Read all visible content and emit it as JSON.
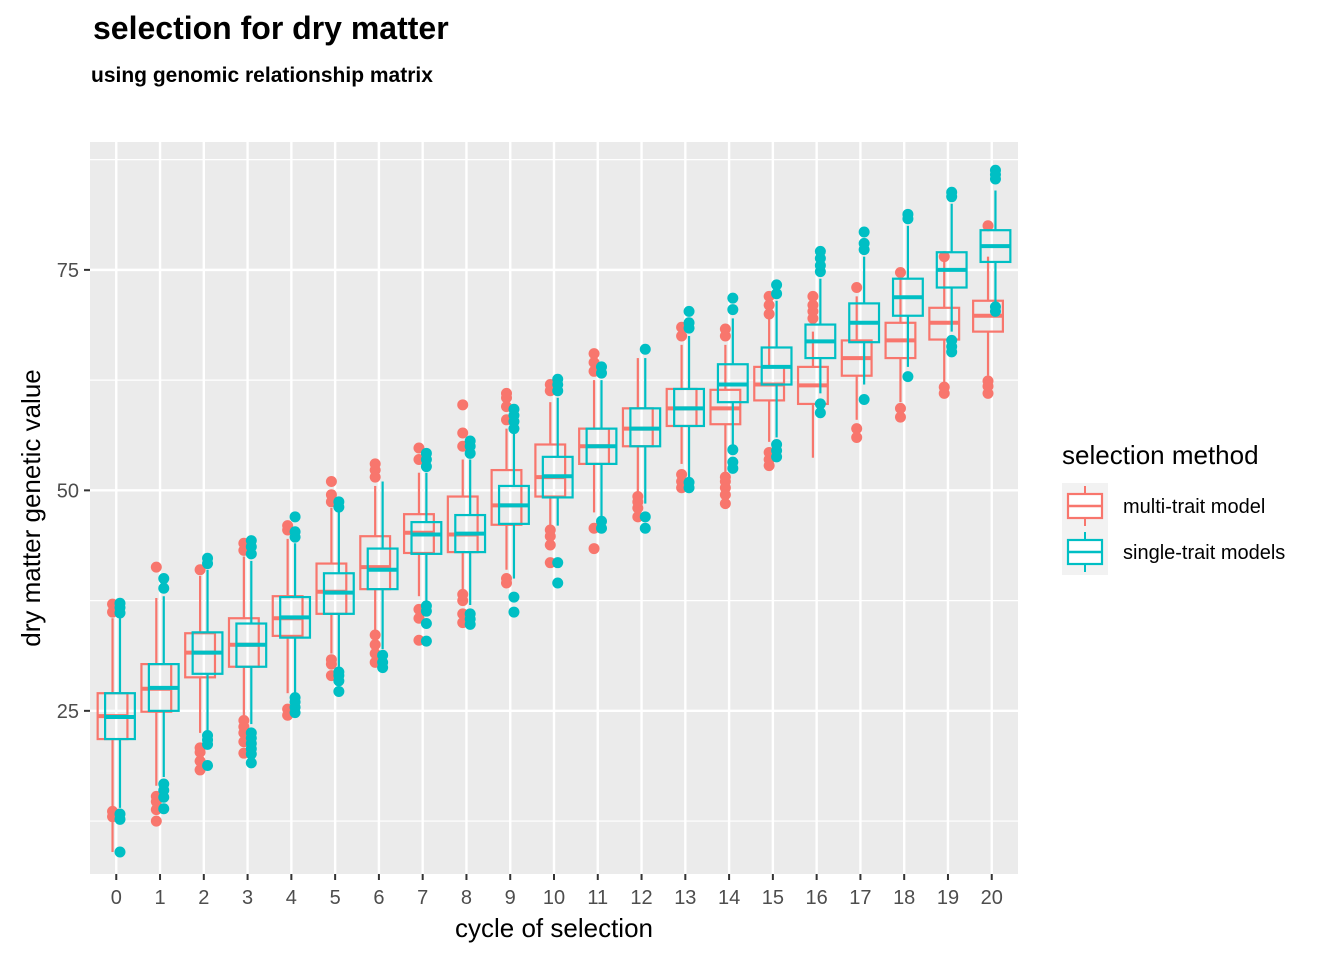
{
  "chart_data": {
    "type": "boxplot",
    "title": "selection for dry matter",
    "subtitle": "using genomic relationship matrix",
    "xlabel": "cycle of selection",
    "ylabel": "dry matter genetic value",
    "categories": [
      "0",
      "1",
      "2",
      "3",
      "4",
      "5",
      "6",
      "7",
      "8",
      "9",
      "10",
      "11",
      "12",
      "13",
      "14",
      "15",
      "16",
      "17",
      "18",
      "19",
      "20"
    ],
    "yticks": [
      25,
      50,
      75
    ],
    "ylim": [
      6.5,
      89.5
    ],
    "grid": true,
    "legend": {
      "title": "selection method",
      "position": "right",
      "items": [
        "multi-trait model",
        "single-trait models"
      ]
    },
    "series": [
      {
        "name": "multi-trait model",
        "color": "#F8766D",
        "boxes": [
          {
            "q1": 21.8,
            "median": 24.4,
            "q3": 27.0,
            "lower": 9.0,
            "upper": 35.5,
            "outliers": [
              13.0,
              13.6,
              36.2,
              37.1
            ]
          },
          {
            "q1": 24.9,
            "median": 27.5,
            "q3": 30.3,
            "lower": 16.5,
            "upper": 37.8,
            "outliers": [
              12.5,
              13.8,
              14.7,
              15.3,
              41.3
            ]
          },
          {
            "q1": 28.8,
            "median": 31.6,
            "q3": 33.8,
            "lower": 22.5,
            "upper": 40.3,
            "outliers": [
              18.3,
              19.3,
              20.3,
              20.8,
              41.0
            ]
          },
          {
            "q1": 30.0,
            "median": 32.5,
            "q3": 35.5,
            "lower": 24.5,
            "upper": 42.5,
            "outliers": [
              20.2,
              21.5,
              22.5,
              23.2,
              23.9,
              43.2,
              44.0
            ]
          },
          {
            "q1": 33.5,
            "median": 35.5,
            "q3": 38.0,
            "lower": 27.0,
            "upper": 44.5,
            "outliers": [
              24.5,
              25.2,
              45.5,
              46.0
            ]
          },
          {
            "q1": 36.0,
            "median": 38.5,
            "q3": 41.7,
            "lower": 31.5,
            "upper": 48.0,
            "outliers": [
              29.0,
              30.3,
              30.8,
              48.7,
              49.5,
              51.0
            ]
          },
          {
            "q1": 38.8,
            "median": 41.3,
            "q3": 44.8,
            "lower": 34.0,
            "upper": 50.5,
            "outliers": [
              30.5,
              31.5,
              32.5,
              33.6,
              51.5,
              52.3,
              53.0
            ]
          },
          {
            "q1": 42.9,
            "median": 45.2,
            "q3": 47.3,
            "lower": 38.0,
            "upper": 52.0,
            "outliers": [
              33.0,
              35.5,
              36.5,
              53.5,
              54.8
            ]
          },
          {
            "q1": 43.0,
            "median": 45.0,
            "q3": 49.3,
            "lower": 38.5,
            "upper": 53.5,
            "outliers": [
              35.0,
              36.0,
              37.5,
              38.2,
              55.0,
              56.5,
              59.7
            ]
          },
          {
            "q1": 46.1,
            "median": 48.3,
            "q3": 52.3,
            "lower": 41.0,
            "upper": 57.0,
            "outliers": [
              39.5,
              40.0,
              58.0,
              59.5,
              60.5,
              61.0
            ]
          },
          {
            "q1": 49.3,
            "median": 51.5,
            "q3": 55.2,
            "lower": 46.0,
            "upper": 60.0,
            "outliers": [
              41.8,
              43.8,
              44.8,
              45.5,
              61.3,
              62.0
            ]
          },
          {
            "q1": 53.0,
            "median": 55.0,
            "q3": 57.0,
            "lower": 47.5,
            "upper": 62.5,
            "outliers": [
              43.4,
              45.7,
              63.5,
              64.5,
              65.5
            ]
          },
          {
            "q1": 55.0,
            "median": 57.0,
            "q3": 59.3,
            "lower": 49.5,
            "upper": 65.0,
            "outliers": [
              47.0,
              48.0,
              48.7,
              49.3
            ]
          },
          {
            "q1": 57.3,
            "median": 59.3,
            "q3": 61.5,
            "lower": 53.0,
            "upper": 66.5,
            "outliers": [
              50.3,
              51.0,
              51.8,
              67.5,
              68.5
            ]
          },
          {
            "q1": 57.5,
            "median": 59.3,
            "q3": 61.4,
            "lower": 52.0,
            "upper": 66.5,
            "outliers": [
              48.5,
              49.5,
              50.3,
              51.0,
              51.5,
              67.5,
              68.3
            ]
          },
          {
            "q1": 60.2,
            "median": 62.0,
            "q3": 64.0,
            "lower": 55.5,
            "upper": 69.5,
            "outliers": [
              52.8,
              53.5,
              54.3,
              70.0,
              71.0,
              72.0
            ]
          },
          {
            "q1": 59.8,
            "median": 61.9,
            "q3": 64.0,
            "lower": 53.7,
            "upper": 68.0,
            "outliers": [
              69.5,
              70.3,
              71.0,
              72.0
            ]
          },
          {
            "q1": 63.0,
            "median": 65.0,
            "q3": 67.0,
            "lower": 58.0,
            "upper": 72.0,
            "outliers": [
              56.0,
              57.0,
              73.0
            ]
          },
          {
            "q1": 65.0,
            "median": 67.0,
            "q3": 69.0,
            "lower": 60.0,
            "upper": 74.0,
            "outliers": [
              58.3,
              59.3,
              74.7
            ]
          },
          {
            "q1": 67.1,
            "median": 69.0,
            "q3": 70.7,
            "lower": 62.0,
            "upper": 76.0,
            "outliers": [
              61.0,
              61.7,
              76.5
            ]
          },
          {
            "q1": 68.0,
            "median": 69.8,
            "q3": 71.5,
            "lower": 63.0,
            "upper": 76.5,
            "outliers": [
              61.0,
              61.8,
              62.4,
              80.0
            ]
          }
        ]
      },
      {
        "name": "single-trait models",
        "color": "#00BFC4",
        "boxes": [
          {
            "q1": 21.8,
            "median": 24.3,
            "q3": 27.0,
            "lower": 14.0,
            "upper": 35.5,
            "outliers": [
              9.0,
              12.7,
              13.3,
              36.1,
              36.7,
              37.2
            ]
          },
          {
            "q1": 25.0,
            "median": 27.6,
            "q3": 30.3,
            "lower": 17.5,
            "upper": 38.0,
            "outliers": [
              13.9,
              15.2,
              16.0,
              16.7,
              38.9,
              40.0
            ]
          },
          {
            "q1": 29.2,
            "median": 31.6,
            "q3": 33.9,
            "lower": 22.5,
            "upper": 41.0,
            "outliers": [
              18.8,
              21.2,
              21.7,
              22.2,
              41.7,
              42.3
            ]
          },
          {
            "q1": 30.0,
            "median": 32.5,
            "q3": 34.9,
            "lower": 23.5,
            "upper": 42.0,
            "outliers": [
              19.1,
              20.1,
              20.7,
              21.3,
              21.9,
              22.5,
              42.8,
              43.6,
              44.3
            ]
          },
          {
            "q1": 33.3,
            "median": 35.6,
            "q3": 37.9,
            "lower": 27.0,
            "upper": 44.0,
            "outliers": [
              24.8,
              25.4,
              26.0,
              26.5,
              44.7,
              45.3,
              47.0
            ]
          },
          {
            "q1": 36.0,
            "median": 38.4,
            "q3": 40.6,
            "lower": 30.0,
            "upper": 47.5,
            "outliers": [
              27.2,
              28.4,
              29.0,
              29.4,
              48.1,
              48.7
            ]
          },
          {
            "q1": 38.8,
            "median": 41.0,
            "q3": 43.4,
            "lower": 32.0,
            "upper": 51.0,
            "outliers": [
              29.9,
              30.5,
              31.3
            ]
          },
          {
            "q1": 42.8,
            "median": 45.0,
            "q3": 46.4,
            "lower": 37.5,
            "upper": 52.0,
            "outliers": [
              32.9,
              34.9,
              36.3,
              36.9,
              52.7,
              53.5,
              54.2
            ]
          },
          {
            "q1": 43.0,
            "median": 45.1,
            "q3": 47.2,
            "lower": 37.0,
            "upper": 53.5,
            "outliers": [
              34.8,
              35.4,
              36.0,
              54.2,
              55.0,
              55.6
            ]
          },
          {
            "q1": 46.2,
            "median": 48.3,
            "q3": 50.5,
            "lower": 40.0,
            "upper": 56.5,
            "outliers": [
              36.2,
              37.9,
              57.0,
              57.8,
              58.5,
              59.2
            ]
          },
          {
            "q1": 49.2,
            "median": 51.6,
            "q3": 53.8,
            "lower": 46.0,
            "upper": 60.5,
            "outliers": [
              39.5,
              41.8,
              61.3,
              62.0,
              62.6
            ]
          },
          {
            "q1": 53.0,
            "median": 55.0,
            "q3": 57.0,
            "lower": 47.0,
            "upper": 62.5,
            "outliers": [
              45.7,
              46.5,
              63.3,
              64.0
            ]
          },
          {
            "q1": 55.0,
            "median": 57.0,
            "q3": 59.3,
            "lower": 48.5,
            "upper": 65.0,
            "outliers": [
              45.7,
              47.0,
              66.0
            ]
          },
          {
            "q1": 57.3,
            "median": 59.3,
            "q3": 61.5,
            "lower": 51.0,
            "upper": 67.5,
            "outliers": [
              50.3,
              50.9,
              68.4,
              69.0,
              70.3
            ]
          },
          {
            "q1": 60.0,
            "median": 62.0,
            "q3": 64.3,
            "lower": 55.0,
            "upper": 69.5,
            "outliers": [
              52.5,
              53.2,
              54.6,
              70.5,
              71.8
            ]
          },
          {
            "q1": 62.0,
            "median": 64.0,
            "q3": 66.2,
            "lower": 56.0,
            "upper": 71.5,
            "outliers": [
              53.8,
              54.5,
              55.2,
              72.3,
              73.3
            ]
          },
          {
            "q1": 65.0,
            "median": 66.9,
            "q3": 68.8,
            "lower": 61.0,
            "upper": 74.0,
            "outliers": [
              58.8,
              59.8,
              74.8,
              75.5,
              76.3,
              77.1
            ]
          },
          {
            "q1": 66.8,
            "median": 69.0,
            "q3": 71.2,
            "lower": 62.0,
            "upper": 76.5,
            "outliers": [
              60.3,
              77.3,
              78.0,
              79.3
            ]
          },
          {
            "q1": 69.8,
            "median": 71.9,
            "q3": 74.0,
            "lower": 64.0,
            "upper": 80.0,
            "outliers": [
              62.9,
              80.8,
              81.3
            ]
          },
          {
            "q1": 73.0,
            "median": 75.0,
            "q3": 77.0,
            "lower": 68.0,
            "upper": 82.5,
            "outliers": [
              65.7,
              66.3,
              67.0,
              83.3,
              83.8
            ]
          },
          {
            "q1": 75.9,
            "median": 77.7,
            "q3": 79.5,
            "lower": 71.0,
            "upper": 84.0,
            "outliers": [
              70.3,
              70.8,
              85.3,
              85.8,
              86.3
            ]
          }
        ]
      }
    ]
  }
}
